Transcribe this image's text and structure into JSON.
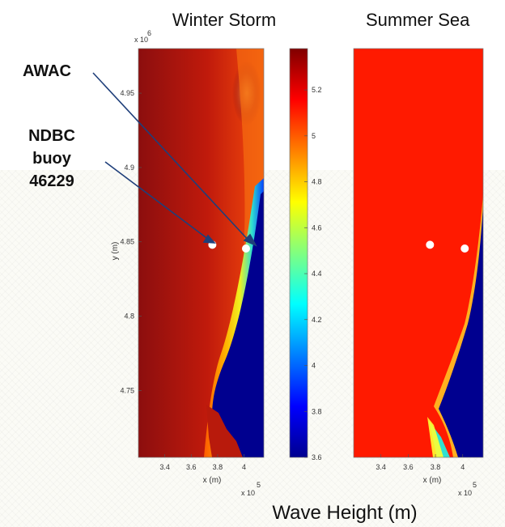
{
  "chart_data": {
    "type": "heatmap",
    "panel_titles": [
      "Winter Storm",
      "Summer Sea"
    ],
    "bottom_label": "Wave Height (m)",
    "annotations": [
      {
        "label": "AWAC",
        "target": "east-station"
      },
      {
        "label": "NDBC\nbuoy\n46229",
        "target": "west-station"
      }
    ],
    "axes": {
      "xlabel": "x (m)",
      "ylabel": "y (m)",
      "x_ticks": [
        "3.4",
        "3.6",
        "3.8",
        "4"
      ],
      "x_tick_values": [
        340000,
        360000,
        380000,
        400000
      ],
      "x_exponent_base": "x 10",
      "x_exponent_power": "5",
      "y_ticks": [
        "4.95",
        "4.9",
        "4.85",
        "4.8",
        "4.75"
      ],
      "y_tick_values": [
        4950000,
        4900000,
        4850000,
        4800000,
        4750000
      ],
      "y_exponent_base": "x 10",
      "y_exponent_power": "6",
      "xlim": [
        320000,
        415000
      ],
      "ylim": [
        4705000,
        4980000
      ]
    },
    "colorbar": {
      "ticks": [
        "5.2",
        "5",
        "4.8",
        "4.6",
        "4.4",
        "4.2",
        "4",
        "3.8",
        "3.6"
      ],
      "tick_values": [
        5.2,
        5.0,
        4.8,
        4.6,
        4.4,
        4.2,
        4.0,
        3.8,
        3.6
      ],
      "range": [
        3.6,
        5.38
      ],
      "colors": [
        "#00008f",
        "#0000ff",
        "#0080ff",
        "#00ffff",
        "#80ff80",
        "#ffff00",
        "#ff8000",
        "#ff0000",
        "#800000"
      ]
    },
    "stations": [
      {
        "name": "west-station",
        "x": 376000,
        "y": 4848000
      },
      {
        "name": "east-station",
        "x": 401500,
        "y": 4845500
      }
    ]
  }
}
